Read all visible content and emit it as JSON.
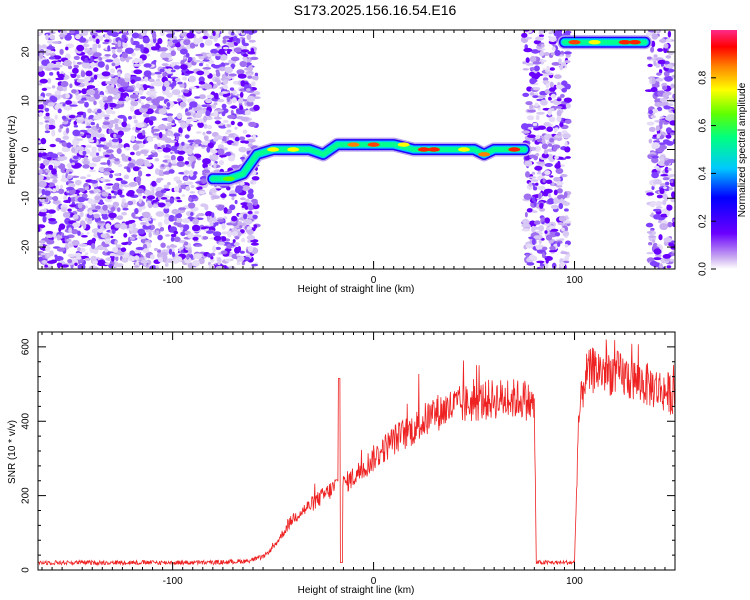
{
  "title": "S173.2025.156.16.54.E16",
  "colors": {
    "series": "#ee2222",
    "background": "#ffffff",
    "axis": "#000000"
  },
  "chart_data": [
    {
      "type": "heatmap",
      "xlabel": "Height of straight line (km)",
      "ylabel": "Frequency (Hz)",
      "xlim": [
        -167,
        150
      ],
      "ylim": [
        -24.5,
        24.5
      ],
      "xticks": [
        -100,
        0,
        100
      ],
      "yticks": [
        -20,
        -10,
        0,
        10,
        20
      ],
      "colorbar": {
        "label": "Normalized spectral amplitude",
        "range": [
          0,
          1
        ],
        "ticks": [
          0,
          0.2,
          0.4,
          0.6,
          0.8
        ],
        "tick_labels": [
          "0.0",
          "0.2",
          "0.4",
          "0.6",
          "0.8"
        ]
      },
      "noise_regions_x": [
        [
          -167,
          -58
        ],
        [
          75,
          97
        ],
        [
          137,
          150
        ]
      ],
      "ridge": {
        "x": [
          -80,
          -72,
          -65,
          -58,
          -50,
          -40,
          -32,
          -25,
          -18,
          -10,
          0,
          10,
          20,
          30,
          40,
          50,
          55,
          60,
          65,
          75,
          95,
          100,
          110,
          120,
          130,
          135
        ],
        "y": [
          -6,
          -6,
          -5,
          -1,
          0,
          0,
          0,
          -1,
          1,
          1,
          1,
          1,
          0,
          0,
          0,
          0,
          -1,
          0,
          0,
          0,
          22,
          22,
          22,
          22,
          22,
          22
        ]
      }
    },
    {
      "type": "line",
      "xlabel": "Height of straight line (km)",
      "ylabel": "SNR (10 * v/v)",
      "xlim": [
        -167,
        150
      ],
      "ylim": [
        0,
        640
      ],
      "xticks": [
        -100,
        0,
        100
      ],
      "yticks": [
        0,
        200,
        400,
        600
      ],
      "series": [
        {
          "x": [
            -167,
            -140,
            -120,
            -100,
            -80,
            -70,
            -62,
            -55,
            -50,
            -45,
            -40,
            -35,
            -30,
            -25,
            -20,
            -17,
            -15,
            -10,
            0,
            10,
            20,
            30,
            40,
            50,
            60,
            70,
            75,
            80,
            81,
            90,
            100,
            102,
            105,
            110,
            120,
            130,
            140,
            150
          ],
          "values": [
            20,
            20,
            20,
            20,
            20,
            22,
            25,
            35,
            60,
            100,
            140,
            160,
            180,
            200,
            220,
            240,
            230,
            250,
            300,
            350,
            380,
            420,
            440,
            450,
            460,
            460,
            460,
            440,
            20,
            20,
            20,
            400,
            520,
            540,
            530,
            510,
            490,
            470
          ]
        }
      ]
    }
  ]
}
